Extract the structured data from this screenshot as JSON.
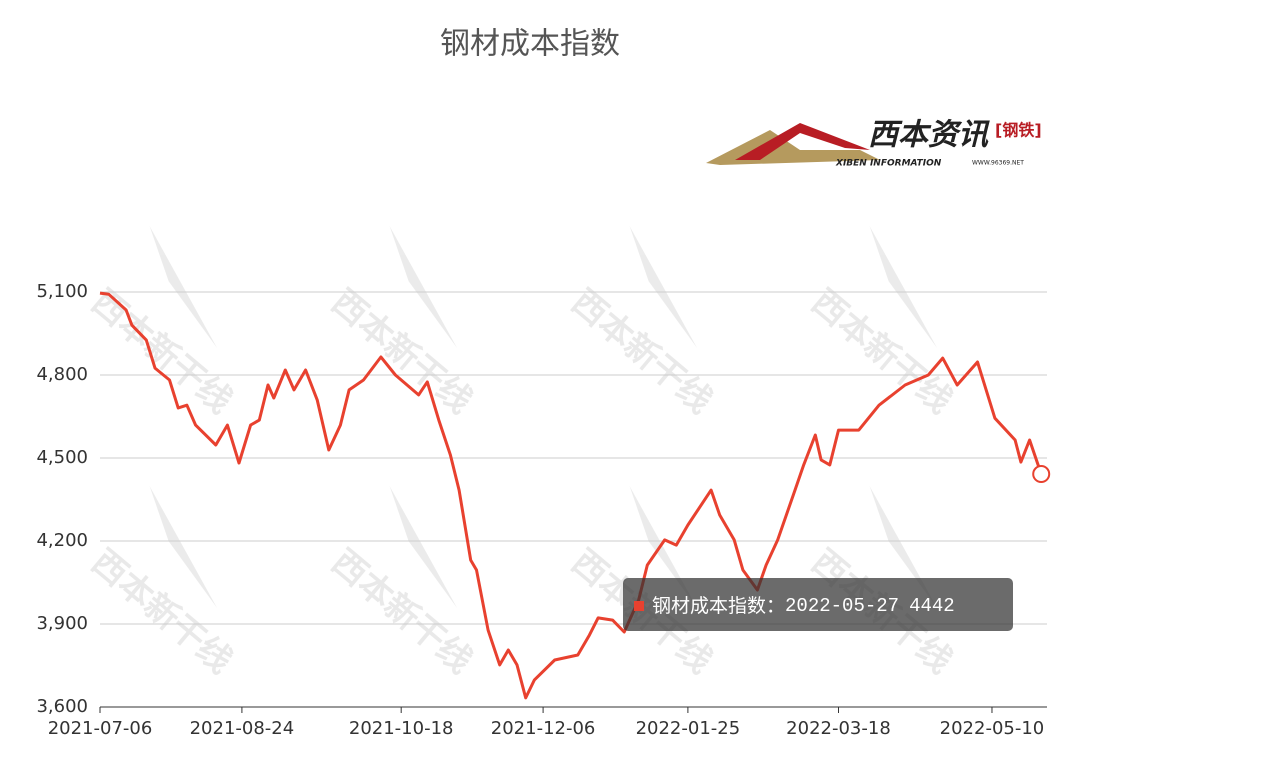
{
  "chart_data": {
    "type": "line",
    "title": "钢材成本指数",
    "logo": {
      "brand": "西本资讯",
      "tag": "[钢铁]",
      "english": "XIBEN INFORMATION",
      "site": "WWW.96369.NET"
    },
    "watermark": "西本新干线",
    "series": [
      {
        "name": "钢材成本指数",
        "color": "#e8412f"
      }
    ],
    "x": [
      "2021-07-06",
      "2021-07-09",
      "2021-07-15",
      "2021-07-17",
      "2021-07-22",
      "2021-07-25",
      "2021-07-30",
      "2021-08-02",
      "2021-08-05",
      "2021-08-08",
      "2021-08-15",
      "2021-08-19",
      "2021-08-23",
      "2021-08-27",
      "2021-08-30",
      "2021-09-02",
      "2021-09-04",
      "2021-09-08",
      "2021-09-11",
      "2021-09-15",
      "2021-09-19",
      "2021-09-23",
      "2021-09-27",
      "2021-09-30",
      "2021-10-05",
      "2021-10-11",
      "2021-10-16",
      "2021-10-24",
      "2021-10-27",
      "2021-10-31",
      "2021-11-04",
      "2021-11-07",
      "2021-11-11",
      "2021-11-13",
      "2021-11-17",
      "2021-11-21",
      "2021-11-24",
      "2021-11-27",
      "2021-11-30",
      "2021-12-03",
      "2021-12-10",
      "2021-12-18",
      "2021-12-22",
      "2021-12-25",
      "2021-12-30",
      "2022-01-03",
      "2022-01-08",
      "2022-01-11",
      "2022-01-17",
      "2022-01-21",
      "2022-01-25",
      "2022-02-02",
      "2022-02-05",
      "2022-02-10",
      "2022-02-13",
      "2022-02-18",
      "2022-02-21",
      "2022-02-25",
      "2022-03-03",
      "2022-03-06",
      "2022-03-10",
      "2022-03-12",
      "2022-03-15",
      "2022-03-18",
      "2022-03-25",
      "2022-04-01",
      "2022-04-10",
      "2022-04-18",
      "2022-04-23",
      "2022-04-28",
      "2022-05-05",
      "2022-05-11",
      "2022-05-18",
      "2022-05-20",
      "2022-05-23",
      "2022-05-27"
    ],
    "values": [
      5096,
      5092,
      5035,
      4980,
      4926,
      4825,
      4782,
      4681,
      4691,
      4619,
      4547,
      4619,
      4482,
      4619,
      4637,
      4764,
      4717,
      4818,
      4746,
      4818,
      4710,
      4529,
      4619,
      4746,
      4782,
      4865,
      4800,
      4728,
      4775,
      4637,
      4511,
      4384,
      4131,
      4095,
      3878,
      3752,
      3806,
      3752,
      3633,
      3698,
      3770,
      3788,
      3860,
      3922,
      3914,
      3871,
      3987,
      4113,
      4204,
      4185,
      4258,
      4384,
      4294,
      4204,
      4095,
      4023,
      4113,
      4204,
      4384,
      4475,
      4583,
      4493,
      4475,
      4601,
      4601,
      4691,
      4764,
      4800,
      4861,
      4764,
      4847,
      4644,
      4565,
      4485,
      4565,
      4442
    ],
    "xlim": [
      "2021-07-06",
      "2022-05-29"
    ],
    "xticks": [
      "2021-07-06",
      "2021-08-24",
      "2021-10-18",
      "2021-12-06",
      "2022-01-25",
      "2022-03-18",
      "2022-05-10"
    ],
    "ylim": [
      3600,
      5100
    ],
    "yticks": [
      {
        "value": 3600,
        "label": "3,600"
      },
      {
        "value": 3900,
        "label": "3,900"
      },
      {
        "value": 4200,
        "label": "4,200"
      },
      {
        "value": 4500,
        "label": "4,500"
      },
      {
        "value": 4800,
        "label": "4,800"
      },
      {
        "value": 5100,
        "label": "5,100"
      }
    ],
    "grid": true,
    "tooltip_separator": "："
  }
}
